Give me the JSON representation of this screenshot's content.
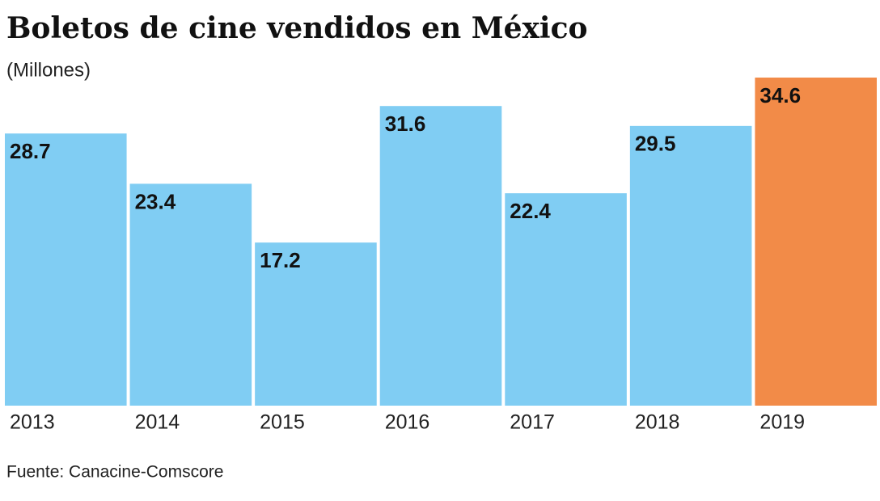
{
  "chart_data": {
    "type": "bar",
    "title": "Boletos de cine vendidos en México",
    "subtitle": "(Millones)",
    "categories": [
      "2013",
      "2014",
      "2015",
      "2016",
      "2017",
      "2018",
      "2019"
    ],
    "values": [
      28.7,
      23.4,
      17.2,
      31.6,
      22.4,
      29.5,
      34.6
    ],
    "colors": [
      "#80cdf3",
      "#80cdf3",
      "#80cdf3",
      "#80cdf3",
      "#80cdf3",
      "#80cdf3",
      "#f28b48"
    ],
    "source": "Fuente: Canacine-Comscore"
  }
}
